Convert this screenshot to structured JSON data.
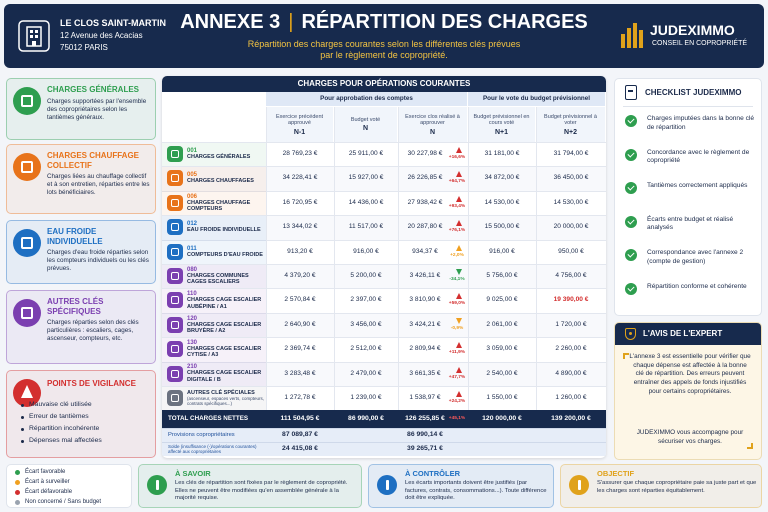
{
  "header": {
    "residence": {
      "name": "LE CLOS SAINT-MARTIN",
      "address": "12 Avenue des Acacias",
      "city": "75012 PARIS"
    },
    "title": "ANNEXE 3",
    "separator": "|",
    "title_main": "RÉPARTITION DES CHARGES",
    "subtitle": "Répartition des charges courantes selon les différentes clés prévues par le règlement de copropriété.",
    "brand": {
      "name": "JUDEXIMMO",
      "tagline": "CONSEIL EN COPROPRIÉTÉ"
    }
  },
  "categories": [
    {
      "title": "CHARGES GÉNÉRALES",
      "text": "Charges supportées par l'ensemble des copropriétaires selon les tantièmes généraux.",
      "color": "#2e9e4f"
    },
    {
      "title": "CHARGES CHAUFFAGE COLLECTIF",
      "text": "Charges liées au chauffage collectif et à son entretien, réparties entre les lots bénéficiaires.",
      "color": "#e8731a"
    },
    {
      "title": "EAU FROIDE INDIVIDUELLE",
      "text": "Charges d'eau froide réparties selon les compteurs individuels ou les clés prévues.",
      "color": "#1e6fc2"
    },
    {
      "title": "AUTRES CLÉS SPÉCIFIQUES",
      "text": "Charges réparties selon des clés particulières : escaliers, cages, ascenseur, compteurs, etc.",
      "color": "#7b3fb0"
    }
  ],
  "vigilance": {
    "title": "POINTS DE VIGILANCE",
    "color": "#d32f2f",
    "items": [
      "Mauvaise clé utilisée",
      "Erreur de tantièmes",
      "Répartition incohérente",
      "Dépenses mal affectées"
    ]
  },
  "table": {
    "title": "CHARGES POUR OPÉRATIONS COURANTES",
    "groups": [
      "Pour approbation des comptes",
      "Pour le vote du budget prévisionnel"
    ],
    "columns": [
      {
        "label": "Exercice précédent approuvé",
        "period": "N-1"
      },
      {
        "label": "Budget voté",
        "period": "N"
      },
      {
        "label": "Exercice clos réalisé à approuver",
        "period": "N"
      },
      {
        "label": "Budget prévisionnel en cours voté",
        "period": "N+1"
      },
      {
        "label": "Budget prévisionnel à voter",
        "period": "N+2"
      }
    ],
    "rows": [
      {
        "code": "001",
        "label": "CHARGES GÉNÉRALES",
        "icon_color": "#2e9e4f",
        "values": [
          "28 769,23 €",
          "25 911,00 €",
          "30 227,98 €",
          "31 181,00 €",
          "31 794,00 €"
        ],
        "variance": "+16,6%",
        "variance_color": "#d32f2f"
      },
      {
        "code": "005",
        "label": "CHARGES CHAUFFAGES",
        "icon_color": "#e8731a",
        "values": [
          "34 228,41 €",
          "15 927,00 €",
          "26 226,85 €",
          "34 872,00 €",
          "36 450,00 €"
        ],
        "variance": "+64,7%",
        "variance_color": "#d32f2f"
      },
      {
        "code": "006",
        "label": "CHARGES CHAUFFAGE COMPTEURS",
        "icon_color": "#e8731a",
        "values": [
          "16 720,95 €",
          "14 436,00 €",
          "27 938,42 €",
          "14 530,00 €",
          "14 530,00 €"
        ],
        "variance": "+93,4%",
        "variance_color": "#d32f2f"
      },
      {
        "code": "012",
        "label": "EAU FROIDE INDIVIDUELLE",
        "icon_color": "#1e6fc2",
        "values": [
          "13 344,02 €",
          "11 517,00 €",
          "20 287,80 €",
          "15 500,00 €",
          "20 000,00 €"
        ],
        "variance": "+76,1%",
        "variance_color": "#d32f2f"
      },
      {
        "code": "011",
        "label": "COMPTEURS D'EAU FROIDE",
        "icon_color": "#1e6fc2",
        "values": [
          "913,20 €",
          "916,00 €",
          "934,37 €",
          "916,00 €",
          "950,00 €"
        ],
        "variance": "+2,0%",
        "variance_color": "#f0a020"
      },
      {
        "code": "080",
        "label": "CHARGES COMMUNES CAGES ESCALIERS",
        "icon_color": "#7b3fb0",
        "values": [
          "4 379,20 €",
          "5 200,00 €",
          "3 426,11 €",
          "5 756,00 €",
          "4 756,00 €"
        ],
        "variance": "-34,1%",
        "variance_color": "#2e9e4f"
      },
      {
        "code": "110",
        "label": "CHARGES CAGE ESCALIER AUBÉPINE / A1",
        "icon_color": "#7b3fb0",
        "values": [
          "2 570,84 €",
          "2 397,00 €",
          "3 810,90 €",
          "9 025,00 €",
          "19 390,00 €"
        ],
        "value_colors": [
          null,
          null,
          null,
          null,
          "#d32f2f"
        ],
        "variance": "+59,0%",
        "variance_color": "#d32f2f"
      },
      {
        "code": "120",
        "label": "CHARGES CAGE ESCALIER BRUYÈRE / A2",
        "icon_color": "#7b3fb0",
        "values": [
          "2 640,90 €",
          "3 456,00 €",
          "3 424,21 €",
          "2 061,00 €",
          "1 720,00 €"
        ],
        "variance": "-0,9%",
        "variance_color": "#f0a020"
      },
      {
        "code": "130",
        "label": "CHARGES CAGE ESCALIER CYTISE / A3",
        "icon_color": "#7b3fb0",
        "values": [
          "2 369,74 €",
          "2 512,00 €",
          "2 809,94 €",
          "3 059,00 €",
          "2 260,00 €"
        ],
        "variance": "+11,9%",
        "variance_color": "#d32f2f"
      },
      {
        "code": "210",
        "label": "CHARGES CAGE ESCALIER DIGITALE / B",
        "icon_color": "#7b3fb0",
        "values": [
          "3 283,48 €",
          "2 479,00 €",
          "3 661,35 €",
          "2 540,00 €",
          "4 890,00 €"
        ],
        "variance": "+47,7%",
        "variance_color": "#d32f2f"
      },
      {
        "label": "AUTRES CLÉ SPÉCIALES",
        "note": "(ascenseur, espaces verts, compteurs, contrats spécifiques...)",
        "icon_color": "#6b7280",
        "values": [
          "1 272,78 €",
          "1 239,00 €",
          "1 538,97 €",
          "1 550,00 €",
          "1 260,00 €"
        ],
        "variance": "+24,2%",
        "variance_color": "#d32f2f"
      }
    ],
    "total": {
      "label": "TOTAL CHARGES NETTES",
      "values": [
        "111 504,95 €",
        "86 990,00 €",
        "126 255,85 €",
        "120 000,00 €",
        "139 200,00 €"
      ],
      "variance": "+45,1%",
      "variance_color": "#ff5a5a"
    },
    "provisions": {
      "label": "Provisions copropriétaires",
      "values": [
        "87 089,87 €",
        null,
        "86 990,14 €"
      ]
    },
    "balance": {
      "label": "Solde (insuffisance (-)/opérations courantes) affecté aux copropriétaires",
      "values": [
        "24 415,08 €",
        null,
        "39 265,71 €"
      ]
    }
  },
  "checklist": {
    "title": "CHECKLIST JUDEXIMMO",
    "items": [
      "Charges imputées dans la bonne clé de répartition",
      "Concordance avec le règlement de copropriété",
      "Tantièmes correctement appliqués",
      "Écarts entre budget et réalisé analysés",
      "Correspondance avec l'annexe 2 (compte de gestion)",
      "Répartition conforme et cohérente"
    ]
  },
  "expert": {
    "title": "L'AVIS DE L'EXPERT",
    "text": "L'annexe 3 est essentielle pour vérifier que chaque dépense est affectée à la bonne clé de répartition. Des erreurs peuvent entraîner des appels de fonds injustifiés pour certains copropriétaires.",
    "closing": "JUDEXIMMO vous accompagne pour sécuriser vos charges."
  },
  "legend": [
    {
      "label": "Écart favorable",
      "color": "#2e9e4f"
    },
    {
      "label": "Écart à surveiller",
      "color": "#f0a020"
    },
    {
      "label": "Écart défavorable",
      "color": "#d32f2f"
    },
    {
      "label": "Non concerné / Sans budget",
      "color": "#9aa3af"
    }
  ],
  "notes": [
    {
      "title": "À SAVOIR",
      "text": "Les clés de répartition sont fixées par le règlement de copropriété. Elles ne peuvent être modifiées qu'en assemblée générale à la majorité requise.",
      "color": "#2e9e4f"
    },
    {
      "title": "À CONTRÔLER",
      "text": "Les écarts importants doivent être justifiés (par factures, contrats, consommations...). Toute différence doit être expliquée.",
      "color": "#1e6fc2"
    },
    {
      "title": "OBJECTIF",
      "text": "S'assurer que chaque copropriétaire paie sa juste part et que les charges sont réparties équitablement.",
      "color": "#e0a21b"
    }
  ]
}
